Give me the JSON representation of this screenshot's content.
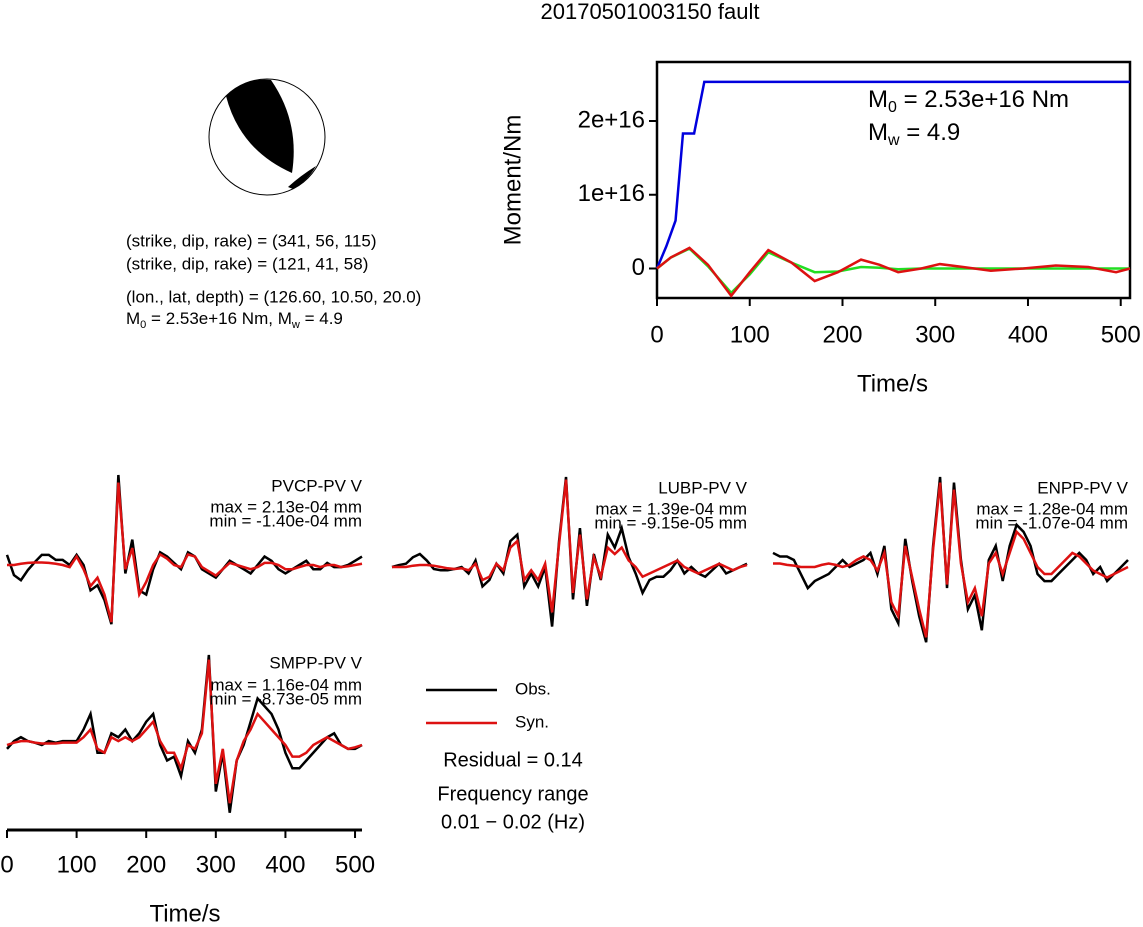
{
  "title": "20170501003150 fault",
  "mechanism": {
    "lines": [
      "(strike, dip, rake) = (341, 56, 115)",
      "(strike, dip, rake) = (121, 41, 58)",
      "(lon., lat, depth) = (126.60, 10.50, 20.0)"
    ],
    "magnitude": [
      {
        "symbol": "M",
        "subscript": "0",
        "text": " = 2.53e+16 Nm, "
      },
      {
        "symbol": "M",
        "subscript": "w",
        "text": " = 4.9"
      }
    ]
  },
  "chart_data": [
    {
      "type": "line",
      "ylabel": "Moment/Nm",
      "xlabel": "Time/s",
      "xlim": [
        0,
        510
      ],
      "ylim": [
        -4000000000000000.0,
        2.8e+16
      ],
      "xticks": [
        0,
        100,
        200,
        300,
        400,
        500
      ],
      "yticks": [
        0,
        {
          "value": 1e+16,
          "label": "1e+16"
        },
        {
          "value": 2e+16,
          "label": "2e+16"
        }
      ],
      "annotations": [
        {
          "symbol": "M",
          "subscript": "0",
          "text": " = 2.53e+16 Nm"
        },
        {
          "symbol": "M",
          "subscript": "w",
          "text": " = 4.9"
        }
      ],
      "series": [
        {
          "color": "#0000dd",
          "x": [
            0,
            10,
            20,
            28,
            40,
            51,
            510
          ],
          "values": [
            0,
            3000000000000000.0,
            6500000000000000.0,
            1.83e+16,
            1.83e+16,
            2.53e+16,
            2.53e+16
          ]
        },
        {
          "color": "#22dd22",
          "x": [
            0,
            15,
            35,
            55,
            80,
            100,
            120,
            145,
            170,
            195,
            220,
            240,
            260,
            285,
            305,
            330,
            360,
            395,
            430,
            465,
            495,
            510
          ],
          "values": [
            0,
            1500000000000000.0,
            2700000000000000.0,
            300000000000000.0,
            -3300000000000000.0,
            -800000000000000.0,
            2200000000000000.0,
            800000000000000.0,
            -500000000000000.0,
            -400000000000000.0,
            200000000000000.0,
            100000000000000.0,
            -100000000000000.0,
            0,
            0,
            0,
            0,
            0,
            0,
            0,
            0,
            0
          ]
        },
        {
          "color": "#dd1111",
          "x": [
            0,
            15,
            35,
            55,
            80,
            100,
            120,
            145,
            170,
            195,
            220,
            240,
            260,
            285,
            305,
            330,
            360,
            395,
            430,
            465,
            495,
            510
          ],
          "values": [
            0,
            1500000000000000.0,
            2800000000000000.0,
            500000000000000.0,
            -3700000000000000.0,
            -500000000000000.0,
            2500000000000000.0,
            800000000000000.0,
            -1700000000000000.0,
            -500000000000000.0,
            1200000000000000.0,
            500000000000000.0,
            -500000000000000.0,
            0,
            600000000000000.0,
            200000000000000.0,
            -300000000000000.0,
            0,
            400000000000000.0,
            200000000000000.0,
            -500000000000000.0,
            0
          ]
        }
      ]
    },
    {
      "type": "waveform",
      "xlabel": "Time/s",
      "xlim": [
        0,
        510
      ],
      "xticks": [
        0,
        100,
        200,
        300,
        400,
        500
      ],
      "legend": [
        {
          "name": "Obs.",
          "color": "#000000"
        },
        {
          "name": "Syn.",
          "color": "#dd1111"
        }
      ],
      "residual": "Residual = 0.14",
      "frequency": [
        "Frequency range",
        "0.01 − 0.02 (Hz)"
      ],
      "x": [
        0,
        10,
        20,
        30,
        40,
        50,
        60,
        70,
        80,
        90,
        100,
        110,
        120,
        130,
        140,
        150,
        160,
        170,
        180,
        190,
        200,
        210,
        220,
        230,
        240,
        250,
        260,
        270,
        280,
        290,
        300,
        310,
        320,
        330,
        340,
        350,
        360,
        370,
        380,
        390,
        400,
        410,
        420,
        430,
        440,
        450,
        460,
        470,
        480,
        490,
        500,
        510
      ],
      "panels": [
        {
          "station": "PVCP-PV V",
          "max": "max = 2.13e-04 mm",
          "min": "min = -1.40e-04 mm",
          "obs": [
            2.4e-05,
            -2.4e-05,
            -3.6e-05,
            -1.2e-05,
            7e-06,
            2.4e-05,
            2.4e-05,
            1.2e-05,
            1.2e-05,
            0,
            2.4e-05,
            0,
            -6e-05,
            -4.8e-05,
            -8.3e-05,
            -0.00014,
            0.000213,
            -2e-05,
            6e-05,
            -6e-05,
            -7e-05,
            -1e-05,
            3e-05,
            2e-05,
            5e-06,
            -1e-05,
            3e-05,
            2e-05,
            -1e-05,
            -2e-05,
            -3e-05,
            -1e-05,
            1e-05,
            0,
            -1e-05,
            -2e-05,
            0,
            2e-05,
            1e-05,
            -1e-05,
            -2e-05,
            -1e-05,
            0,
            1e-05,
            -1e-05,
            -1e-05,
            5e-06,
            -5e-06,
            -5e-06,
            0,
            1e-05,
            2e-05
          ],
          "syn": [
            0,
            0,
            3e-06,
            5e-06,
            6e-06,
            6e-06,
            5e-06,
            3e-06,
            0,
            -5e-06,
            2e-05,
            -1e-05,
            -5e-05,
            -3e-05,
            -7e-05,
            -0.000135,
            0.000195,
            -1e-05,
            4e-05,
            -7e-05,
            -4e-05,
            0,
            2.5e-05,
            1.5e-05,
            0,
            -5e-06,
            2.5e-05,
            2e-05,
            -5e-06,
            -1.5e-05,
            -2.5e-05,
            -1e-05,
            5e-06,
            0,
            -5e-06,
            -1e-05,
            -5e-06,
            5e-06,
            5e-06,
            0,
            -1e-05,
            -1e-05,
            -5e-06,
            0,
            0,
            -5e-06,
            0,
            0,
            -5e-06,
            -3e-06,
            0,
            3e-06
          ]
        },
        {
          "station": "LUBP-PV V",
          "max": "max = 1.39e-04 mm",
          "min": "min = -9.15e-05 mm",
          "obs": [
            0,
            3e-06,
            5e-06,
            1.5e-05,
            2e-05,
            1e-05,
            -3e-06,
            -5e-06,
            -5e-06,
            -3e-06,
            0,
            -1e-05,
            1e-05,
            -3e-05,
            -2e-05,
            5e-06,
            -1e-05,
            4e-05,
            5e-05,
            -3e-05,
            -1e-05,
            -3e-05,
            0,
            -9.2e-05,
            4e-05,
            0.000139,
            -5e-05,
            6e-05,
            -6e-05,
            2e-05,
            -2e-05,
            5e-05,
            3e-05,
            6e-05,
            1.5e-05,
            -1e-05,
            -4e-05,
            -2e-05,
            -1.5e-05,
            -1.5e-05,
            -5e-06,
            1e-05,
            -1e-05,
            0,
            -1e-05,
            -1.5e-05,
            -5e-06,
            5e-06,
            -1e-05,
            -5e-06,
            0,
            5e-06
          ],
          "syn": [
            0,
            0,
            0,
            2e-06,
            3e-06,
            3e-06,
            2e-06,
            0,
            -2e-06,
            -3e-06,
            -2e-06,
            -5e-06,
            5e-06,
            -2e-05,
            -1.5e-05,
            5e-06,
            -5e-06,
            3e-05,
            4e-05,
            -2e-05,
            -5e-06,
            -2e-05,
            5e-06,
            -7e-05,
            3.5e-05,
            0.000135,
            -4e-05,
            5e-05,
            -5e-05,
            1.5e-05,
            -1.5e-05,
            3e-05,
            2e-05,
            3e-05,
            1e-05,
            0,
            -1.5e-05,
            -1e-05,
            -5e-06,
            0,
            5e-06,
            1e-05,
            0,
            -5e-06,
            -1e-05,
            -5e-06,
            0,
            5e-06,
            0,
            -5e-06,
            0,
            3e-06
          ]
        },
        {
          "station": "ENPP-PV V",
          "max": "max = 1.28e-04 mm",
          "min": "min = -1.07e-04 mm",
          "obs": [
            2e-05,
            1.5e-05,
            1.5e-05,
            1e-05,
            -1e-05,
            -3e-05,
            -2e-05,
            -1.5e-05,
            -1e-05,
            0,
            1e-05,
            0,
            5e-06,
            1e-05,
            2e-05,
            -1e-05,
            3e-05,
            -6e-05,
            -8e-05,
            4e-05,
            -2e-05,
            -7e-05,
            -0.000107,
            3e-05,
            0.000128,
            -3e-05,
            0.00012,
            1e-05,
            -6e-05,
            -4e-05,
            -9e-05,
            1e-05,
            3e-05,
            -2e-05,
            3e-05,
            6e-05,
            5e-05,
            3e-05,
            -1e-05,
            -2e-05,
            -2e-05,
            -1e-05,
            0,
            1e-05,
            2e-05,
            1e-05,
            -1e-05,
            0,
            -2e-05,
            -1e-05,
            0,
            1e-05
          ],
          "syn": [
            5e-06,
            5e-06,
            3e-06,
            2e-06,
            0,
            0,
            0,
            3e-06,
            5e-06,
            3e-06,
            0,
            3e-06,
            1e-05,
            1.5e-05,
            1e-05,
            -5e-06,
            2e-05,
            -5e-05,
            -7e-05,
            3e-05,
            -1.5e-05,
            -6e-05,
            -0.0001,
            2.5e-05,
            0.00012,
            -2.5e-05,
            0.00011,
            5e-06,
            -5e-05,
            -3e-05,
            -7e-05,
            5e-06,
            2e-05,
            -1e-05,
            2e-05,
            5e-05,
            4e-05,
            2e-05,
            0,
            -1e-05,
            -1e-05,
            0,
            1e-05,
            2e-05,
            1.5e-05,
            5e-06,
            -5e-06,
            -1e-05,
            -1.5e-05,
            -1e-05,
            -5e-06,
            0
          ]
        },
        {
          "station": "SMPP-PV V",
          "max": "max = 1.16e-04 mm",
          "min": "min = -8.73e-05 mm",
          "obs": [
            -5e-06,
            5e-06,
            1e-05,
            5e-06,
            3e-06,
            0,
            5e-06,
            3e-06,
            5e-06,
            5e-06,
            5e-06,
            2e-05,
            4e-05,
            -1e-05,
            -1e-05,
            1.5e-05,
            1e-05,
            2e-05,
            5e-06,
            1.5e-05,
            3e-05,
            4e-05,
            0,
            -2e-05,
            -1.5e-05,
            -4e-05,
            5e-06,
            -1e-05,
            2e-05,
            0.000116,
            -6e-05,
            -1e-05,
            -8.73e-05,
            -2e-05,
            0,
            3e-05,
            6e-05,
            5e-05,
            4e-05,
            2e-05,
            -1e-05,
            -3e-05,
            -3e-05,
            -2e-05,
            -1e-05,
            0,
            1e-05,
            1.5e-05,
            0,
            -5e-06,
            -5e-06,
            0
          ],
          "syn": [
            0,
            3e-06,
            5e-06,
            5e-06,
            3e-06,
            2e-06,
            2e-06,
            2e-06,
            3e-06,
            3e-06,
            3e-06,
            1e-05,
            2e-05,
            -5e-06,
            -1e-05,
            1e-05,
            5e-06,
            1e-05,
            5e-06,
            1e-05,
            2e-05,
            3e-05,
            5e-06,
            -1e-05,
            -1e-05,
            -3e-05,
            0,
            -5e-06,
            1.5e-05,
            0.00011,
            -5e-05,
            -5e-06,
            -7.5e-05,
            -2e-05,
            5e-06,
            2e-05,
            4e-05,
            3e-05,
            2e-05,
            1e-05,
            0,
            -1.5e-05,
            -1.5e-05,
            -1e-05,
            0,
            5e-06,
            1e-05,
            5e-06,
            0,
            -5e-06,
            -3e-06,
            0
          ]
        }
      ]
    }
  ]
}
